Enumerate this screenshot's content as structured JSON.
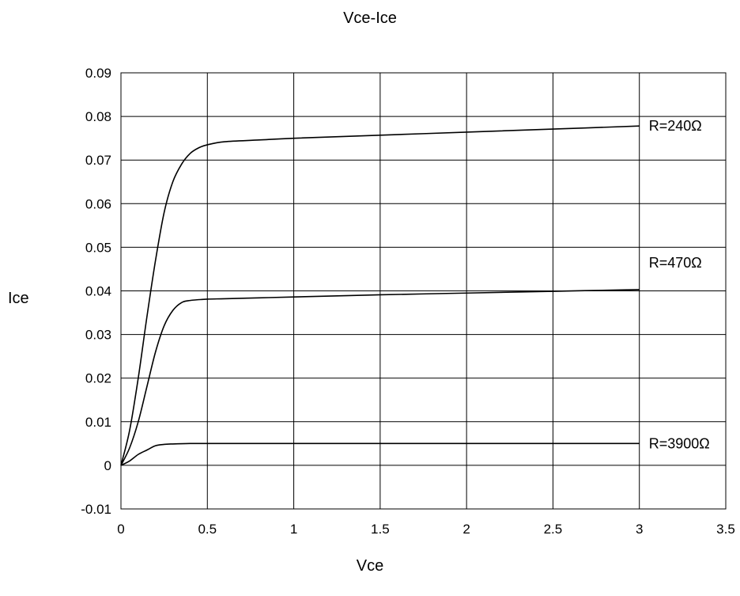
{
  "chart_data": {
    "type": "line",
    "title": "Vce-Ice",
    "xlabel": "Vce",
    "ylabel": "Ice",
    "xlim": [
      0,
      3.5
    ],
    "ylim": [
      -0.01,
      0.09
    ],
    "x_ticks": [
      "0",
      "0.5",
      "1",
      "1.5",
      "2",
      "2.5",
      "3",
      "3.5"
    ],
    "y_ticks": [
      "0.09",
      "0.08",
      "0.07",
      "0.06",
      "0.05",
      "0.04",
      "0.03",
      "0.02",
      "0.01",
      "0",
      "-0.01"
    ],
    "x_tick_values": [
      0,
      0.5,
      1,
      1.5,
      2,
      2.5,
      3,
      3.5
    ],
    "y_tick_values": [
      0.09,
      0.08,
      0.07,
      0.06,
      0.05,
      0.04,
      0.03,
      0.02,
      0.01,
      0,
      -0.01
    ],
    "grid": true,
    "series": [
      {
        "name": "R=240Ω",
        "x": [
          0,
          0.05,
          0.1,
          0.15,
          0.2,
          0.25,
          0.3,
          0.35,
          0.4,
          0.45,
          0.5,
          0.6,
          0.8,
          1.0,
          1.5,
          2.0,
          2.5,
          3.0
        ],
        "y": [
          0,
          0.008,
          0.02,
          0.034,
          0.047,
          0.058,
          0.065,
          0.069,
          0.0715,
          0.0728,
          0.0735,
          0.0742,
          0.0746,
          0.075,
          0.0757,
          0.0764,
          0.0771,
          0.0778
        ]
      },
      {
        "name": "R=470Ω",
        "x": [
          0,
          0.05,
          0.1,
          0.15,
          0.2,
          0.25,
          0.3,
          0.35,
          0.4,
          0.5,
          0.6,
          0.8,
          1.0,
          1.5,
          2.0,
          2.5,
          3.0
        ],
        "y": [
          0,
          0.004,
          0.01,
          0.018,
          0.026,
          0.032,
          0.0355,
          0.0373,
          0.0378,
          0.0381,
          0.0382,
          0.0384,
          0.0386,
          0.0391,
          0.0395,
          0.0399,
          0.0403
        ]
      },
      {
        "name": "R=3900Ω",
        "x": [
          0,
          0.05,
          0.1,
          0.15,
          0.2,
          0.25,
          0.3,
          0.4,
          0.5,
          1.0,
          1.5,
          2.0,
          2.5,
          3.0
        ],
        "y": [
          0,
          0.001,
          0.0025,
          0.0035,
          0.0045,
          0.0048,
          0.0049,
          0.005,
          0.005,
          0.005,
          0.005,
          0.005,
          0.005,
          0.005
        ]
      }
    ]
  }
}
